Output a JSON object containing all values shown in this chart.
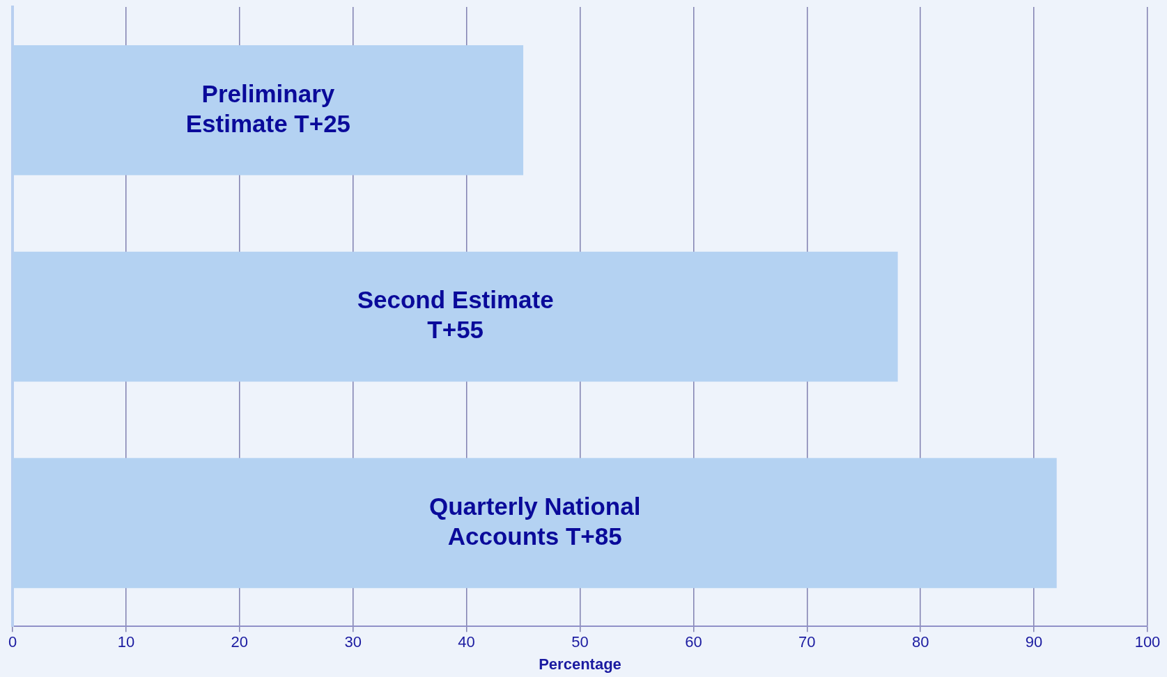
{
  "chart_data": {
    "type": "bar",
    "orientation": "horizontal",
    "categories": [
      "Preliminary\nEstimate T+25",
      "Second Estimate\nT+55",
      "Quarterly National\nAccounts T+85"
    ],
    "values": [
      45,
      78,
      92
    ],
    "color": "#b4d2f2",
    "xlim": [
      0,
      100
    ],
    "xticks": [
      0,
      10,
      20,
      30,
      40,
      50,
      60,
      70,
      80,
      90,
      100
    ],
    "xlabel": "Percentage",
    "grid": "x",
    "tick_labels": "x",
    "legend": false
  }
}
